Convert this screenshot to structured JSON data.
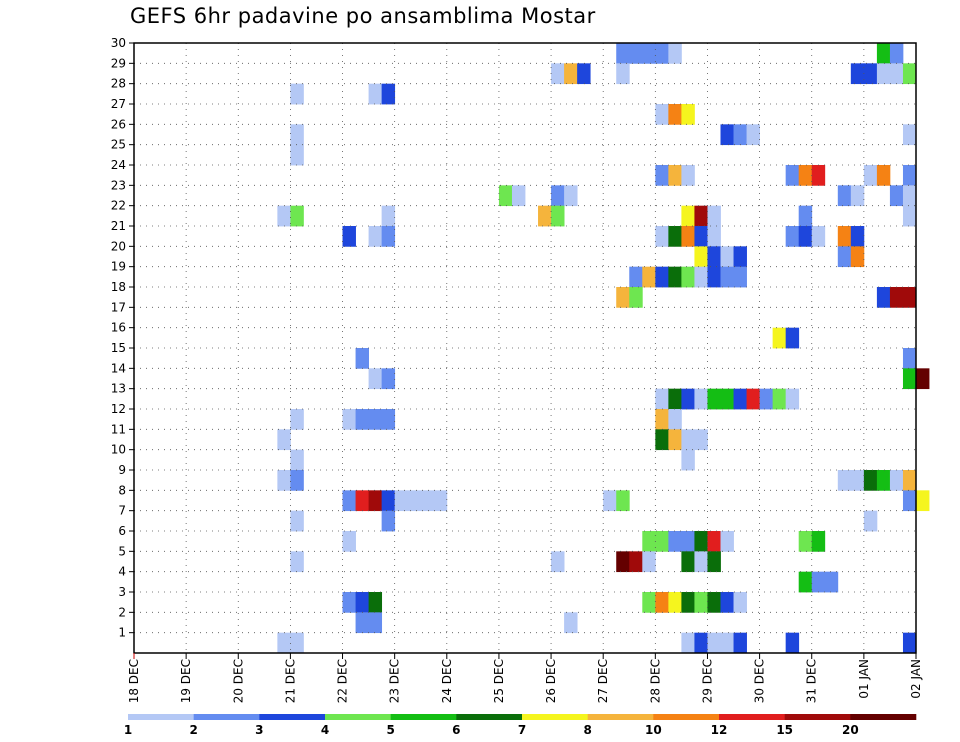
{
  "title": "GEFS 6hr padavine po ansamblima Mostar",
  "chart_data": {
    "type": "heatmap",
    "title": "GEFS 6hr padavine po ansamblima Mostar",
    "x_tick_labels": [
      "18 DEC",
      "19 DEC",
      "20 DEC",
      "21 DEC",
      "22 DEC",
      "23 DEC",
      "24 DEC",
      "25 DEC",
      "26 DEC",
      "27 DEC",
      "28 DEC",
      "29 DEC",
      "30 DEC",
      "31 DEC",
      "01 JAN",
      "02 JAN"
    ],
    "y_tick_labels": [
      "1",
      "2",
      "3",
      "4",
      "5",
      "6",
      "7",
      "8",
      "9",
      "10",
      "11",
      "12",
      "13",
      "14",
      "15",
      "16",
      "17",
      "18",
      "19",
      "20",
      "21",
      "22",
      "23",
      "24",
      "25",
      "26",
      "27",
      "28",
      "29",
      "30"
    ],
    "x_range": [
      "18 DEC 00Z",
      "02 JAN 00Z"
    ],
    "y_range": [
      0,
      30
    ],
    "grid": true,
    "step_hours": 6,
    "legend": {
      "position": "bottom",
      "labels": [
        "1",
        "2",
        "3",
        "4",
        "5",
        "6",
        "7",
        "8",
        "10",
        "12",
        "15",
        "20"
      ],
      "colors": [
        "#b4c8f5",
        "#648cf0",
        "#1e46dc",
        "#6ee650",
        "#14be14",
        "#0a6e0a",
        "#f5f51e",
        "#f5b43c",
        "#f58214",
        "#e11e1e",
        "#a00a0a",
        "#640000"
      ]
    },
    "cells": [
      {
        "member": 30,
        "start": "27 DEC 06Z",
        "levels": [
          2,
          2,
          2,
          2,
          1
        ]
      },
      {
        "member": 30,
        "start": "01 JAN 06Z",
        "levels": [
          5,
          2
        ]
      },
      {
        "member": 29,
        "start": "26 DEC 00Z",
        "levels": [
          1,
          8,
          3
        ]
      },
      {
        "member": 29,
        "start": "27 DEC 06Z",
        "levels": [
          1
        ]
      },
      {
        "member": 29,
        "start": "31 DEC 18Z",
        "levels": [
          3,
          3,
          1,
          1,
          4
        ]
      },
      {
        "member": 28,
        "start": "21 DEC 00Z",
        "levels": [
          1
        ]
      },
      {
        "member": 28,
        "start": "22 DEC 12Z",
        "levels": [
          1,
          3
        ]
      },
      {
        "member": 27,
        "start": "28 DEC 00Z",
        "levels": [
          1,
          9,
          7
        ]
      },
      {
        "member": 26,
        "start": "21 DEC 00Z",
        "levels": [
          1
        ]
      },
      {
        "member": 26,
        "start": "29 DEC 06Z",
        "levels": [
          3,
          2,
          1
        ]
      },
      {
        "member": 26,
        "start": "01 JAN 18Z",
        "levels": [
          1
        ]
      },
      {
        "member": 25,
        "start": "21 DEC 00Z",
        "levels": [
          1
        ]
      },
      {
        "member": 24,
        "start": "28 DEC 00Z",
        "levels": [
          2,
          8,
          1
        ]
      },
      {
        "member": 24,
        "start": "30 DEC 12Z",
        "levels": [
          2,
          9,
          10
        ]
      },
      {
        "member": 24,
        "start": "01 JAN 00Z",
        "levels": [
          1,
          9
        ]
      },
      {
        "member": 24,
        "start": "01 JAN 18Z",
        "levels": [
          2
        ]
      },
      {
        "member": 23,
        "start": "25 DEC 00Z",
        "levels": [
          4,
          1
        ]
      },
      {
        "member": 23,
        "start": "26 DEC 00Z",
        "levels": [
          2,
          1
        ]
      },
      {
        "member": 23,
        "start": "31 DEC 12Z",
        "levels": [
          2,
          1
        ]
      },
      {
        "member": 23,
        "start": "01 JAN 12Z",
        "levels": [
          2,
          1
        ]
      },
      {
        "member": 22,
        "start": "20 DEC 18Z",
        "levels": [
          1,
          4
        ]
      },
      {
        "member": 22,
        "start": "22 DEC 18Z",
        "levels": [
          1
        ]
      },
      {
        "member": 22,
        "start": "25 DEC 18Z",
        "levels": [
          8,
          4
        ]
      },
      {
        "member": 22,
        "start": "28 DEC 12Z",
        "levels": [
          7,
          11,
          1
        ]
      },
      {
        "member": 22,
        "start": "30 DEC 18Z",
        "levels": [
          2
        ]
      },
      {
        "member": 22,
        "start": "01 JAN 18Z",
        "levels": [
          1
        ]
      },
      {
        "member": 21,
        "start": "22 DEC 00Z",
        "levels": [
          3
        ]
      },
      {
        "member": 21,
        "start": "22 DEC 12Z",
        "levels": [
          1,
          2
        ]
      },
      {
        "member": 21,
        "start": "28 DEC 00Z",
        "levels": [
          1,
          6,
          9,
          3,
          1
        ]
      },
      {
        "member": 21,
        "start": "30 DEC 12Z",
        "levels": [
          2,
          3,
          1
        ]
      },
      {
        "member": 21,
        "start": "31 DEC 12Z",
        "levels": [
          9,
          3
        ]
      },
      {
        "member": 20,
        "start": "28 DEC 18Z",
        "levels": [
          7,
          3
        ]
      },
      {
        "member": 20,
        "start": "29 DEC 06Z",
        "levels": [
          1,
          3
        ]
      },
      {
        "member": 20,
        "start": "31 DEC 12Z",
        "levels": [
          2,
          9
        ]
      },
      {
        "member": 19,
        "start": "27 DEC 12Z",
        "levels": [
          2,
          8,
          3,
          6,
          4,
          1,
          3,
          2,
          2
        ]
      },
      {
        "member": 18,
        "start": "27 DEC 06Z",
        "levels": [
          8,
          4
        ]
      },
      {
        "member": 18,
        "start": "01 JAN 06Z",
        "levels": [
          3,
          11,
          11
        ]
      },
      {
        "member": 16,
        "start": "30 DEC 06Z",
        "levels": [
          7,
          3
        ]
      },
      {
        "member": 15,
        "start": "22 DEC 06Z",
        "levels": [
          2
        ]
      },
      {
        "member": 15,
        "start": "01 JAN 18Z",
        "levels": [
          2
        ]
      },
      {
        "member": 14,
        "start": "22 DEC 12Z",
        "levels": [
          1,
          2
        ]
      },
      {
        "member": 14,
        "start": "01 JAN 18Z",
        "levels": [
          5,
          12
        ]
      },
      {
        "member": 13,
        "start": "28 DEC 00Z",
        "levels": [
          1,
          6,
          3,
          1,
          5,
          5,
          3,
          10,
          2,
          4,
          1
        ]
      },
      {
        "member": 12,
        "start": "21 DEC 00Z",
        "levels": [
          1
        ]
      },
      {
        "member": 12,
        "start": "22 DEC 00Z",
        "levels": [
          1,
          2,
          2,
          2
        ]
      },
      {
        "member": 12,
        "start": "28 DEC 00Z",
        "levels": [
          8,
          1
        ]
      },
      {
        "member": 11,
        "start": "20 DEC 18Z",
        "levels": [
          1
        ]
      },
      {
        "member": 11,
        "start": "28 DEC 00Z",
        "levels": [
          6,
          8,
          1,
          1
        ]
      },
      {
        "member": 10,
        "start": "21 DEC 00Z",
        "levels": [
          1
        ]
      },
      {
        "member": 10,
        "start": "28 DEC 12Z",
        "levels": [
          1
        ]
      },
      {
        "member": 9,
        "start": "20 DEC 18Z",
        "levels": [
          1,
          2
        ]
      },
      {
        "member": 9,
        "start": "31 DEC 12Z",
        "levels": [
          1,
          1
        ]
      },
      {
        "member": 9,
        "start": "01 JAN 00Z",
        "levels": [
          6,
          5,
          1,
          8
        ]
      },
      {
        "member": 8,
        "start": "22 DEC 00Z",
        "levels": [
          2,
          10,
          11,
          3,
          1,
          1,
          1,
          1
        ]
      },
      {
        "member": 8,
        "start": "27 DEC 00Z",
        "levels": [
          1,
          4
        ]
      },
      {
        "member": 8,
        "start": "01 JAN 18Z",
        "levels": [
          2,
          7
        ]
      },
      {
        "member": 7,
        "start": "21 DEC 00Z",
        "levels": [
          1
        ]
      },
      {
        "member": 7,
        "start": "22 DEC 18Z",
        "levels": [
          2
        ]
      },
      {
        "member": 7,
        "start": "01 JAN 00Z",
        "levels": [
          1
        ]
      },
      {
        "member": 6,
        "start": "22 DEC 00Z",
        "levels": [
          1
        ]
      },
      {
        "member": 6,
        "start": "27 DEC 18Z",
        "levels": [
          4,
          4,
          2,
          2,
          6,
          10,
          1
        ]
      },
      {
        "member": 6,
        "start": "30 DEC 18Z",
        "levels": [
          4,
          5
        ]
      },
      {
        "member": 5,
        "start": "21 DEC 00Z",
        "levels": [
          1
        ]
      },
      {
        "member": 5,
        "start": "26 DEC 00Z",
        "levels": [
          1
        ]
      },
      {
        "member": 5,
        "start": "27 DEC 06Z",
        "levels": [
          12,
          11,
          1
        ]
      },
      {
        "member": 5,
        "start": "28 DEC 12Z",
        "levels": [
          6,
          1,
          6
        ]
      },
      {
        "member": 4,
        "start": "30 DEC 18Z",
        "levels": [
          5,
          2,
          2
        ]
      },
      {
        "member": 3,
        "start": "22 DEC 00Z",
        "levels": [
          2,
          3,
          6
        ]
      },
      {
        "member": 3,
        "start": "27 DEC 18Z",
        "levels": [
          4,
          9,
          7,
          6,
          4,
          6,
          3,
          1
        ]
      },
      {
        "member": 2,
        "start": "22 DEC 06Z",
        "levels": [
          2,
          2
        ]
      },
      {
        "member": 2,
        "start": "26 DEC 06Z",
        "levels": [
          1
        ]
      },
      {
        "member": 1,
        "start": "20 DEC 18Z",
        "levels": [
          1,
          1
        ]
      },
      {
        "member": 1,
        "start": "28 DEC 12Z",
        "levels": [
          1,
          3,
          1,
          1,
          3
        ]
      },
      {
        "member": 1,
        "start": "30 DEC 12Z",
        "levels": [
          3
        ]
      },
      {
        "member": 1,
        "start": "01 JAN 18Z",
        "levels": [
          3
        ]
      }
    ]
  }
}
